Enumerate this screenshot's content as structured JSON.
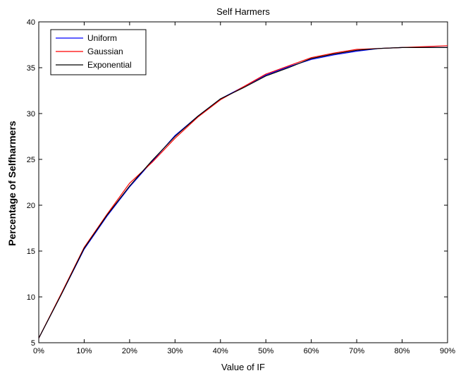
{
  "chart_data": {
    "type": "line",
    "title": "Self Harmers",
    "xlabel": "Value of IF",
    "ylabel": "Percentage of Selfharmers",
    "x": [
      0,
      5,
      10,
      15,
      20,
      25,
      30,
      35,
      40,
      45,
      50,
      55,
      60,
      65,
      70,
      75,
      80,
      85,
      90
    ],
    "xlim": [
      0,
      90
    ],
    "ylim": [
      5,
      40
    ],
    "x_ticks": [
      0,
      10,
      20,
      30,
      40,
      50,
      60,
      70,
      80,
      90
    ],
    "x_tick_labels": [
      "0%",
      "10%",
      "20%",
      "30%",
      "40%",
      "50%",
      "60%",
      "70%",
      "80%",
      "90%"
    ],
    "y_ticks": [
      5,
      10,
      15,
      20,
      25,
      30,
      35,
      40
    ],
    "y_tick_labels": [
      "5",
      "10",
      "15",
      "20",
      "25",
      "30",
      "35",
      "40"
    ],
    "grid": false,
    "legend_position": "top-left",
    "series": [
      {
        "name": "Uniform",
        "color": "#0000ff",
        "values": [
          5.5,
          10.3,
          15.2,
          18.8,
          22.0,
          24.8,
          27.6,
          29.7,
          31.6,
          32.9,
          34.2,
          35.1,
          35.9,
          36.4,
          36.8,
          37.1,
          37.2,
          37.2,
          37.2
        ]
      },
      {
        "name": "Gaussian",
        "color": "#ff0000",
        "values": [
          5.5,
          10.4,
          15.4,
          19.0,
          22.4,
          24.7,
          27.3,
          29.6,
          31.5,
          32.9,
          34.3,
          35.2,
          36.1,
          36.6,
          37.0,
          37.1,
          37.2,
          37.3,
          37.4
        ]
      },
      {
        "name": "Exponential",
        "color": "#000000",
        "values": [
          5.5,
          10.3,
          15.3,
          18.9,
          22.1,
          24.9,
          27.5,
          29.7,
          31.6,
          32.8,
          34.1,
          35.0,
          36.0,
          36.5,
          36.9,
          37.1,
          37.2,
          37.2,
          37.2
        ]
      }
    ]
  }
}
